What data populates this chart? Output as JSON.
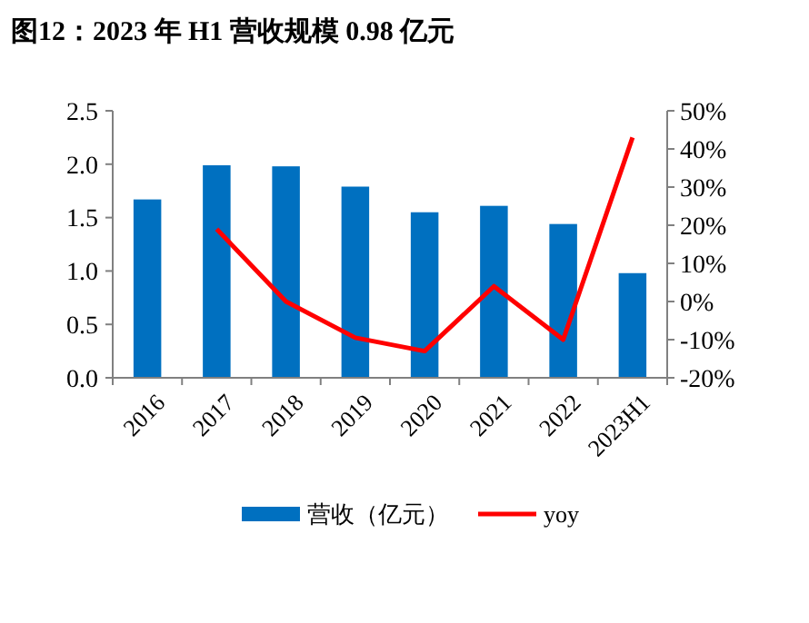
{
  "chart_data": {
    "type": "bar",
    "title": "图12：2023 年 H1 营收规模 0.98 亿元",
    "categories": [
      "2016",
      "2017",
      "2018",
      "2019",
      "2020",
      "2021",
      "2022",
      "2023H1"
    ],
    "series": [
      {
        "name": "营收（亿元）",
        "color": "#0070c0",
        "values": [
          1.67,
          1.99,
          1.98,
          1.79,
          1.55,
          1.61,
          1.44,
          0.98
        ]
      },
      {
        "name": "yoy",
        "type": "line",
        "axis": "y2",
        "color": "#ff0000",
        "values": [
          null,
          19,
          0,
          -9.5,
          -13,
          4,
          -10,
          43
        ]
      }
    ],
    "ylim": [
      0,
      2.5
    ],
    "yticks": [
      {
        "value": 0,
        "label": "0.0"
      },
      {
        "value": 0.5,
        "label": "0.5"
      },
      {
        "value": 1,
        "label": "1.0"
      },
      {
        "value": 1.5,
        "label": "1.5"
      },
      {
        "value": 2,
        "label": "2.0"
      },
      {
        "value": 2.5,
        "label": "2.5"
      }
    ],
    "y2lim": [
      -20,
      50
    ],
    "y2ticks": [
      {
        "value": -20,
        "label": "-20%"
      },
      {
        "value": -10,
        "label": "-10%"
      },
      {
        "value": 0,
        "label": "0%"
      },
      {
        "value": 10,
        "label": "10%"
      },
      {
        "value": 20,
        "label": "20%"
      },
      {
        "value": 30,
        "label": "30%"
      },
      {
        "value": 40,
        "label": "40%"
      },
      {
        "value": 50,
        "label": "50%"
      }
    ],
    "legend": "bottom",
    "grid": false
  }
}
